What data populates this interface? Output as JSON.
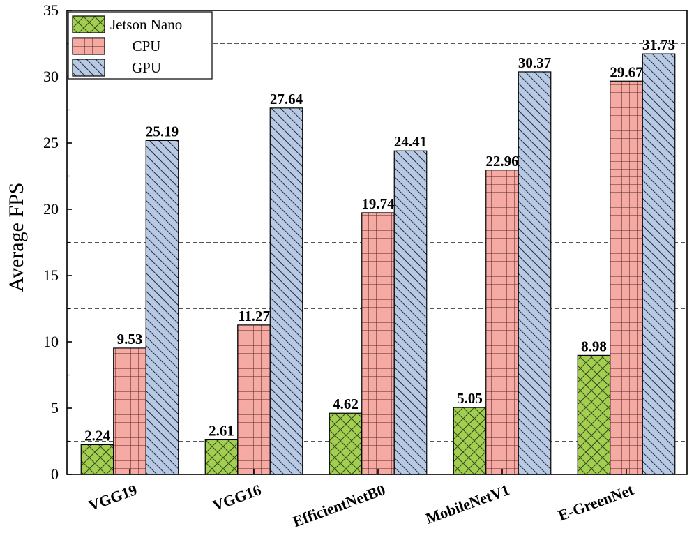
{
  "chart_data": {
    "type": "bar",
    "title": "",
    "xlabel": "",
    "ylabel": "Average FPS",
    "ylim": [
      0,
      35
    ],
    "yticks": [
      0,
      5,
      10,
      15,
      20,
      25,
      30,
      35
    ],
    "grid": "horizontal dashed",
    "legend_position": "top-left",
    "categories": [
      "VGG19",
      "VGG16",
      "EfficientNetB0",
      "MobileNetV1",
      "E-GreenNet"
    ],
    "series": [
      {
        "name": "Jetson Nano",
        "values": [
          2.24,
          2.61,
          4.62,
          5.05,
          8.98
        ],
        "labels": [
          "2.24",
          "2.61",
          "4.62",
          "5.05",
          "8.98"
        ],
        "color": "#a2cf4f",
        "pattern": "crosshatch"
      },
      {
        "name": "CPU",
        "values": [
          9.53,
          11.27,
          19.74,
          22.96,
          29.67
        ],
        "labels": [
          "9.53",
          "11.27",
          "19.74",
          "22.96",
          "29.67"
        ],
        "color": "#f5aba3",
        "pattern": "grid"
      },
      {
        "name": "GPU",
        "values": [
          25.19,
          27.64,
          24.41,
          30.37,
          31.73
        ],
        "labels": [
          "25.19",
          "27.64",
          "24.41",
          "30.37",
          "31.73"
        ],
        "color": "#b7c9e3",
        "pattern": "diagonal"
      }
    ]
  }
}
